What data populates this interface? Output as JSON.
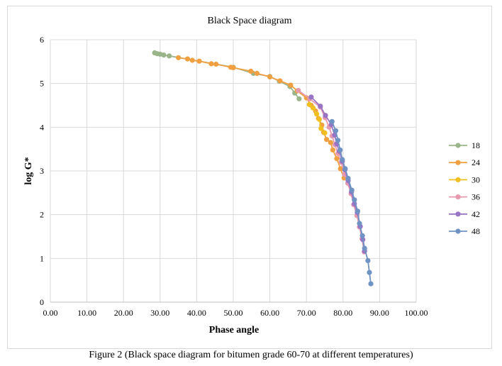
{
  "caption": "Figure 2 (Black space diagram for bitumen grade 60-70 at different temperatures)",
  "chart_data": {
    "type": "scatter",
    "title": "Black Space diagram",
    "xlabel": "Phase angle",
    "ylabel": "log G*",
    "xlim": [
      0,
      100
    ],
    "ylim": [
      0,
      6
    ],
    "x_ticks": [
      "0.00",
      "10.00",
      "20.00",
      "30.00",
      "40.00",
      "50.00",
      "60.00",
      "70.00",
      "80.00",
      "90.00",
      "100.00"
    ],
    "y_ticks": [
      "0",
      "1",
      "2",
      "3",
      "4",
      "5",
      "6"
    ],
    "grid": true,
    "legend_position": "right",
    "lines_connected": true,
    "series": [
      {
        "name": "18",
        "color": "#9bb58a",
        "points": [
          [
            28.5,
            5.7
          ],
          [
            29.2,
            5.68
          ],
          [
            30.0,
            5.67
          ],
          [
            31.0,
            5.65
          ],
          [
            32.5,
            5.63
          ],
          [
            50.0,
            5.37
          ],
          [
            55.5,
            5.23
          ],
          [
            60.0,
            5.16
          ],
          [
            62.6,
            5.05
          ],
          [
            65.5,
            4.93
          ],
          [
            66.8,
            4.78
          ],
          [
            68.0,
            4.65
          ]
        ]
      },
      {
        "name": "24",
        "color": "#f0a040",
        "points": [
          [
            35.0,
            5.59
          ],
          [
            37.5,
            5.56
          ],
          [
            38.8,
            5.53
          ],
          [
            40.7,
            5.51
          ],
          [
            44.0,
            5.45
          ],
          [
            45.3,
            5.44
          ],
          [
            49.3,
            5.37
          ],
          [
            50.0,
            5.36
          ],
          [
            54.8,
            5.28
          ],
          [
            56.5,
            5.23
          ],
          [
            60.0,
            5.15
          ],
          [
            62.8,
            5.06
          ],
          [
            65.7,
            4.96
          ],
          [
            67.5,
            4.83
          ],
          [
            70.0,
            4.67
          ],
          [
            71.3,
            4.5
          ],
          [
            72.5,
            4.37
          ],
          [
            73.3,
            4.2
          ],
          [
            74.2,
            4.05
          ],
          [
            74.7,
            3.88
          ],
          [
            75.5,
            3.72
          ],
          [
            76.6,
            3.65
          ],
          [
            77.2,
            3.48
          ],
          [
            78.3,
            3.28
          ],
          [
            79.3,
            3.05
          ],
          [
            80.3,
            2.84
          ]
        ]
      },
      {
        "name": "30",
        "color": "#f0c020",
        "points": [
          [
            70.8,
            4.52
          ],
          [
            71.8,
            4.44
          ],
          [
            72.8,
            4.3
          ],
          [
            73.5,
            4.18
          ],
          [
            74.0,
            3.97
          ],
          [
            75.0,
            3.87
          ]
        ]
      },
      {
        "name": "36",
        "color": "#e69aae",
        "points": [
          [
            67.8,
            4.84
          ],
          [
            70.9,
            4.65
          ],
          [
            73.8,
            4.46
          ],
          [
            75.1,
            4.22
          ],
          [
            76.2,
            4.0
          ],
          [
            77.0,
            3.8
          ],
          [
            77.8,
            3.6
          ],
          [
            78.6,
            3.4
          ],
          [
            79.5,
            3.2
          ],
          [
            80.4,
            2.92
          ],
          [
            81.3,
            2.72
          ],
          [
            82.2,
            2.48
          ],
          [
            82.9,
            2.23
          ],
          [
            83.8,
            1.98
          ],
          [
            84.5,
            1.72
          ],
          [
            85.2,
            1.45
          ],
          [
            85.8,
            1.15
          ]
        ]
      },
      {
        "name": "42",
        "color": "#9874c4",
        "points": [
          [
            71.3,
            4.69
          ],
          [
            73.8,
            4.48
          ],
          [
            75.2,
            4.27
          ],
          [
            76.8,
            4.06
          ],
          [
            77.7,
            3.82
          ],
          [
            78.3,
            3.62
          ],
          [
            79.0,
            3.45
          ],
          [
            79.8,
            3.22
          ],
          [
            80.5,
            3.03
          ],
          [
            81.4,
            2.78
          ],
          [
            82.3,
            2.52
          ],
          [
            83.1,
            2.25
          ],
          [
            83.9,
            2.05
          ],
          [
            84.7,
            1.73
          ],
          [
            85.4,
            1.43
          ],
          [
            85.9,
            1.17
          ]
        ]
      },
      {
        "name": "48",
        "color": "#6f93c3",
        "points": [
          [
            77.0,
            4.13
          ],
          [
            78.0,
            3.92
          ],
          [
            78.6,
            3.7
          ],
          [
            79.2,
            3.48
          ],
          [
            79.8,
            3.26
          ],
          [
            80.6,
            3.05
          ],
          [
            81.4,
            2.83
          ],
          [
            82.4,
            2.56
          ],
          [
            83.1,
            2.34
          ],
          [
            84.0,
            2.08
          ],
          [
            84.5,
            1.8
          ],
          [
            85.3,
            1.52
          ],
          [
            85.9,
            1.23
          ],
          [
            86.8,
            0.95
          ],
          [
            87.2,
            0.68
          ],
          [
            87.6,
            0.42
          ]
        ]
      }
    ]
  }
}
